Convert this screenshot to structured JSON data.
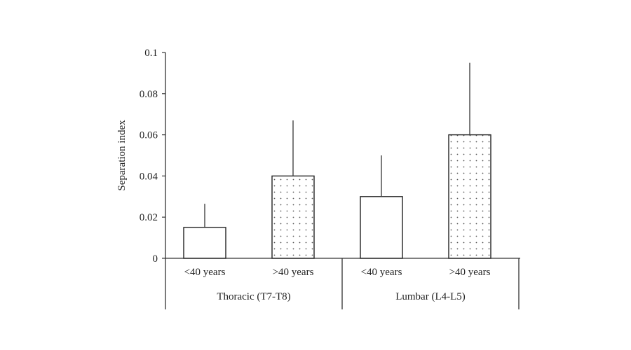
{
  "chart_data": {
    "type": "bar",
    "title": "",
    "xlabel": "",
    "ylabel": "Separation index",
    "ylim": [
      0,
      0.1
    ],
    "yticks": [
      0,
      0.02,
      0.04,
      0.06,
      0.08,
      0.1
    ],
    "ytick_labels": [
      "0",
      "0.02",
      "0.04",
      "0.06",
      "0.08",
      "0.1"
    ],
    "groups": [
      {
        "label": "Thoracic (T7-T8)",
        "bars": [
          {
            "category": "<40 years",
            "value": 0.015,
            "error_upper": 0.0265,
            "pattern": "plain"
          },
          {
            "category": ">40 years",
            "value": 0.04,
            "error_upper": 0.067,
            "pattern": "dotted"
          }
        ]
      },
      {
        "label": "Lumbar (L4-L5)",
        "bars": [
          {
            "category": "<40 years",
            "value": 0.03,
            "error_upper": 0.05,
            "pattern": "plain"
          },
          {
            "category": ">40 years",
            "value": 0.06,
            "error_upper": 0.095,
            "pattern": "dotted"
          }
        ]
      }
    ],
    "grid": false,
    "legend": "none"
  },
  "colors": {
    "axis": "#333333",
    "bar_fill": "#ffffff",
    "bar_stroke": "#222222",
    "dot": "#555555",
    "error_bar": "#444444"
  }
}
